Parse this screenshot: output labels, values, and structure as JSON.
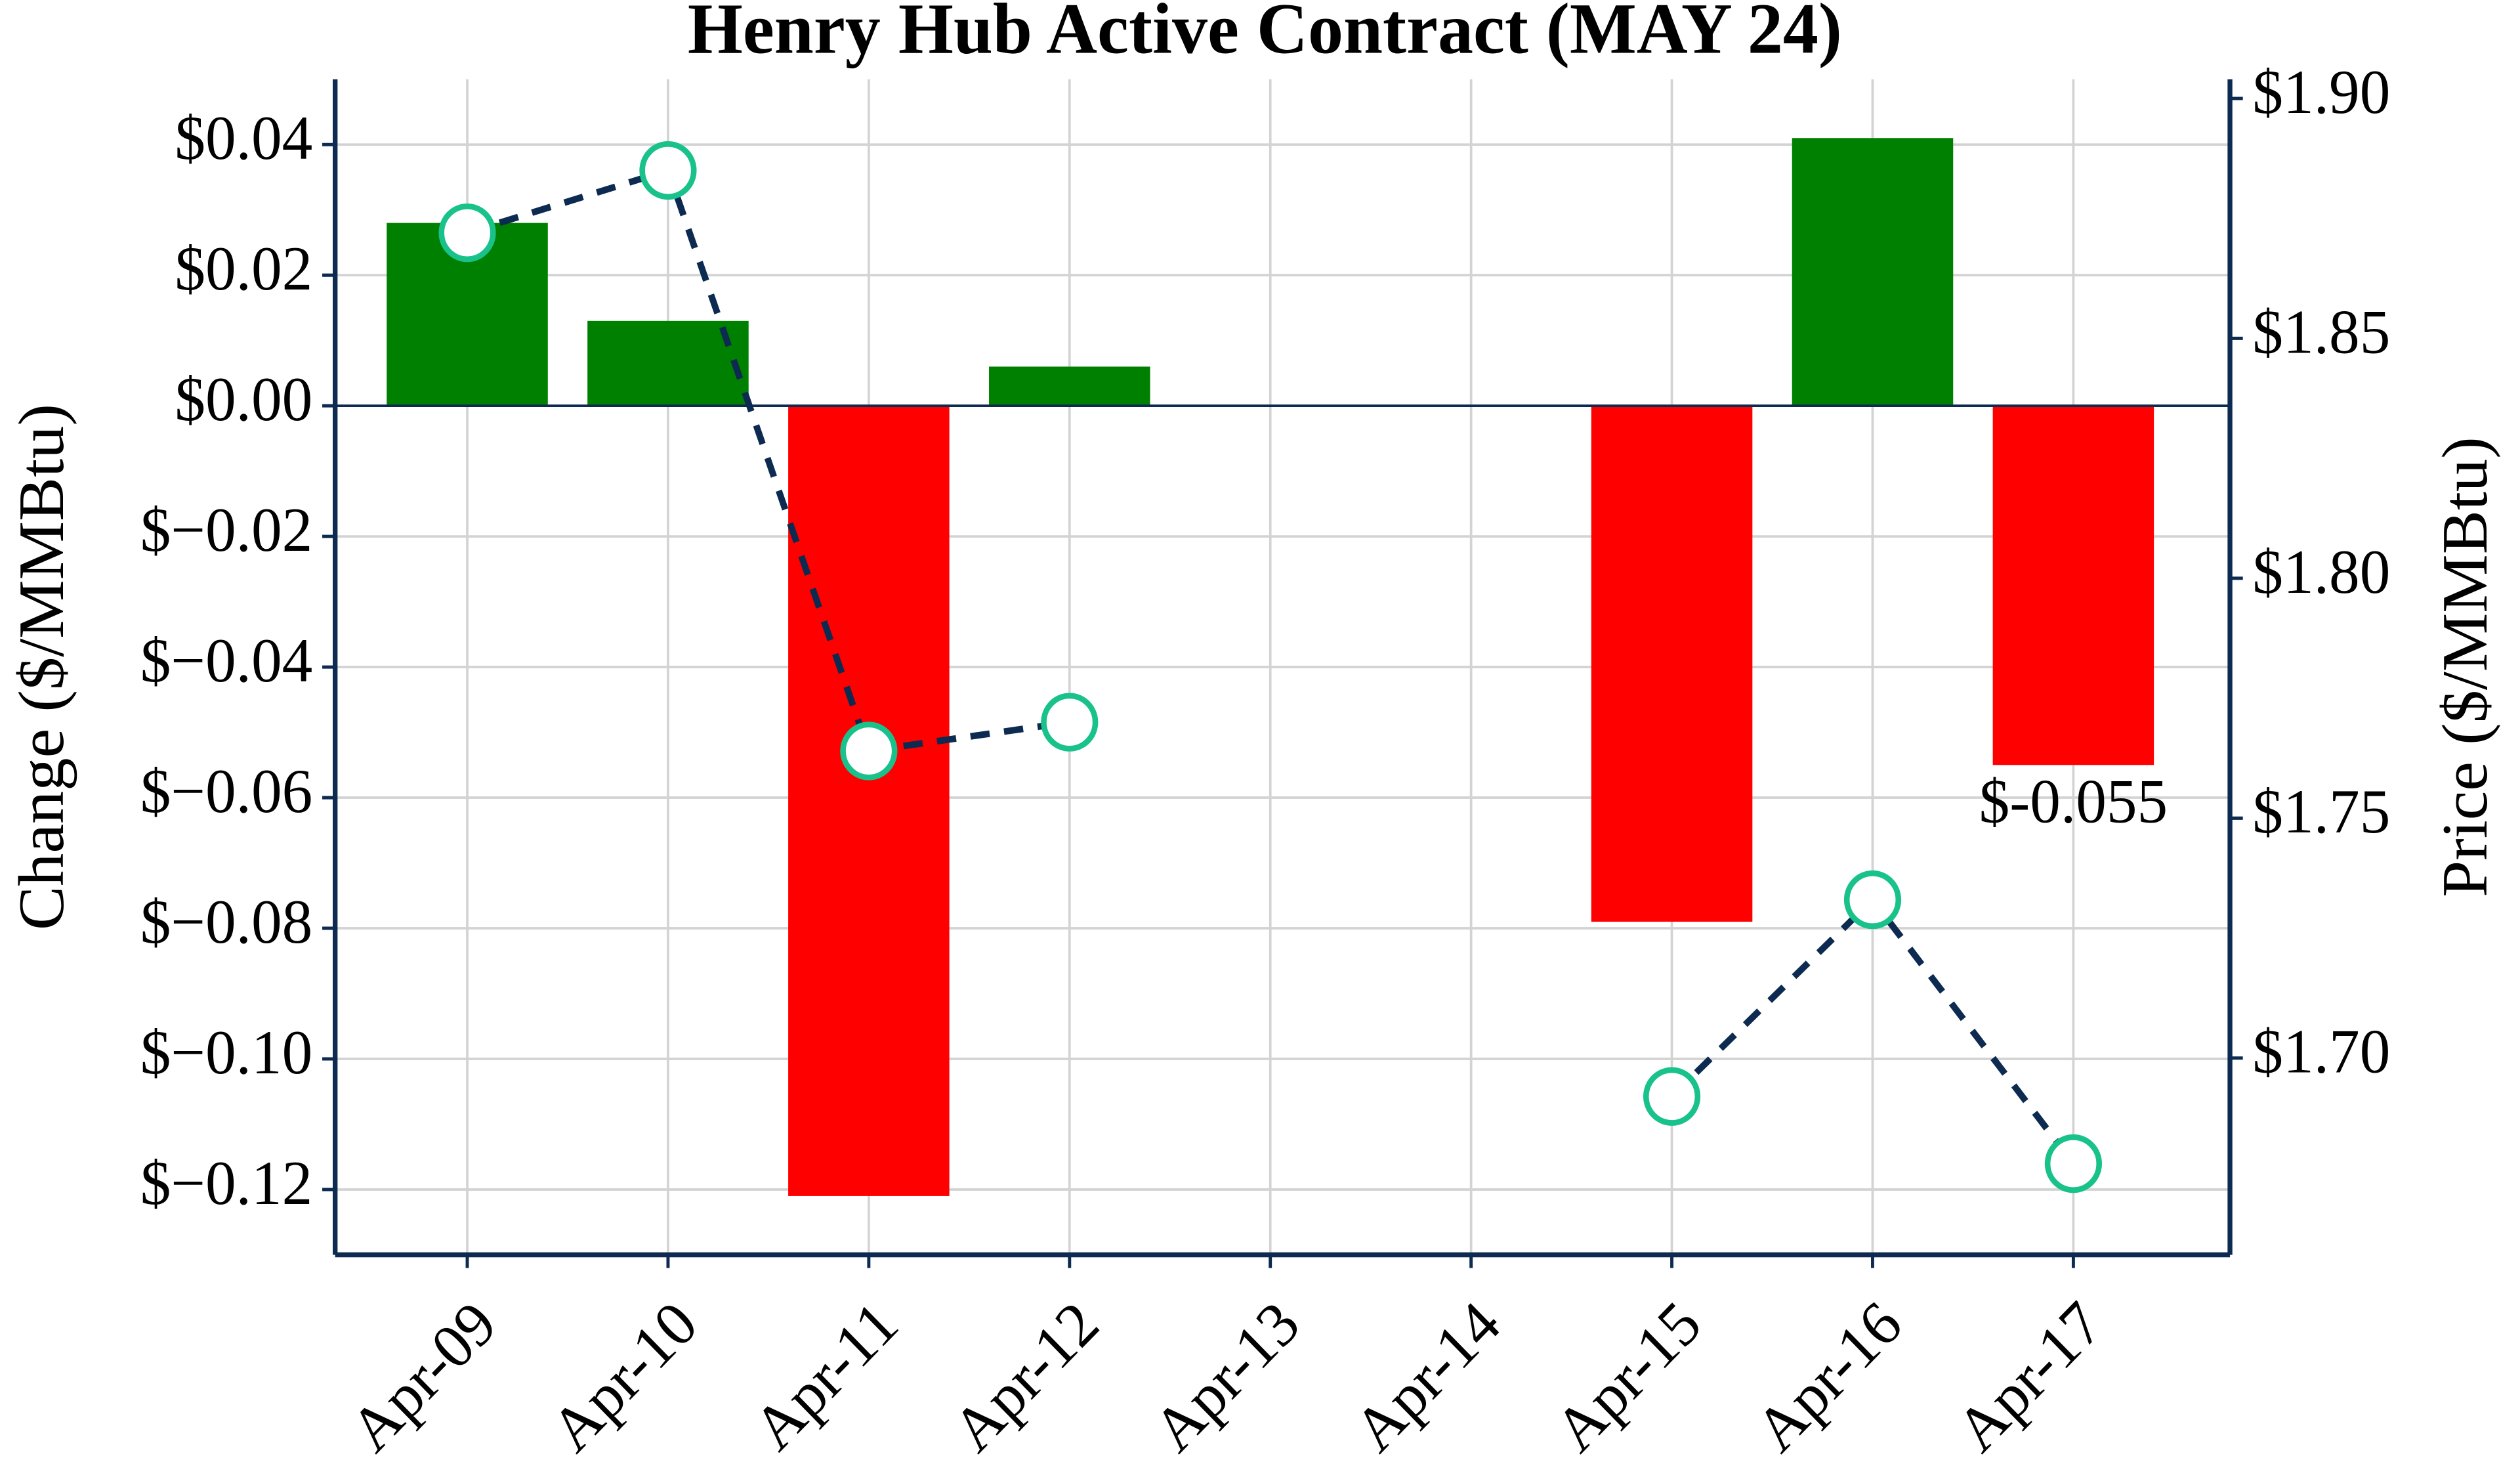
{
  "chart_data": {
    "type": "bar",
    "title": "Henry Hub Active Contract (MAY 24)",
    "ylabel": "Change ($/MMBtu)",
    "y2label": "Price ($/MMBtu)",
    "categories": [
      "Apr-09",
      "Apr-10",
      "Apr-11",
      "Apr-12",
      "Apr-13",
      "Apr-14",
      "Apr-15",
      "Apr-16",
      "Apr-17"
    ],
    "values": [
      0.028,
      0.013,
      -0.121,
      0.006,
      null,
      null,
      -0.079,
      0.041,
      -0.055
    ],
    "value_labels": [
      null,
      null,
      null,
      null,
      null,
      null,
      null,
      null,
      "$-0.055"
    ],
    "positive_color": "#008000",
    "negative_color": "#ff0000",
    "ylim": [
      -0.13,
      0.05
    ],
    "yticks": [
      {
        "value": 0.04,
        "label": "$0.04"
      },
      {
        "value": 0.02,
        "label": "$0.02"
      },
      {
        "value": 0,
        "label": "$0.00"
      },
      {
        "value": -0.02,
        "label": "$−0.02"
      },
      {
        "value": -0.04,
        "label": "$−0.04"
      },
      {
        "value": -0.06,
        "label": "$−0.06"
      },
      {
        "value": -0.08,
        "label": "$−0.08"
      },
      {
        "value": -0.1,
        "label": "$−0.10"
      },
      {
        "value": -0.12,
        "label": "$−0.12"
      }
    ],
    "line": {
      "axis": "y2",
      "values": [
        1.872,
        1.885,
        1.764,
        1.77,
        null,
        null,
        1.692,
        1.733,
        1.678
      ],
      "color": "#0d2a50",
      "marker_color": "#19c28a",
      "dashed": true
    },
    "y2lim": [
      1.659,
      1.904
    ],
    "y2ticks": [
      {
        "value": 1.9,
        "label": "$1.90"
      },
      {
        "value": 1.85,
        "label": "$1.85"
      },
      {
        "value": 1.8,
        "label": "$1.80"
      },
      {
        "value": 1.75,
        "label": "$1.75"
      },
      {
        "value": 1.7,
        "label": "$1.70"
      }
    ],
    "grid": true
  }
}
